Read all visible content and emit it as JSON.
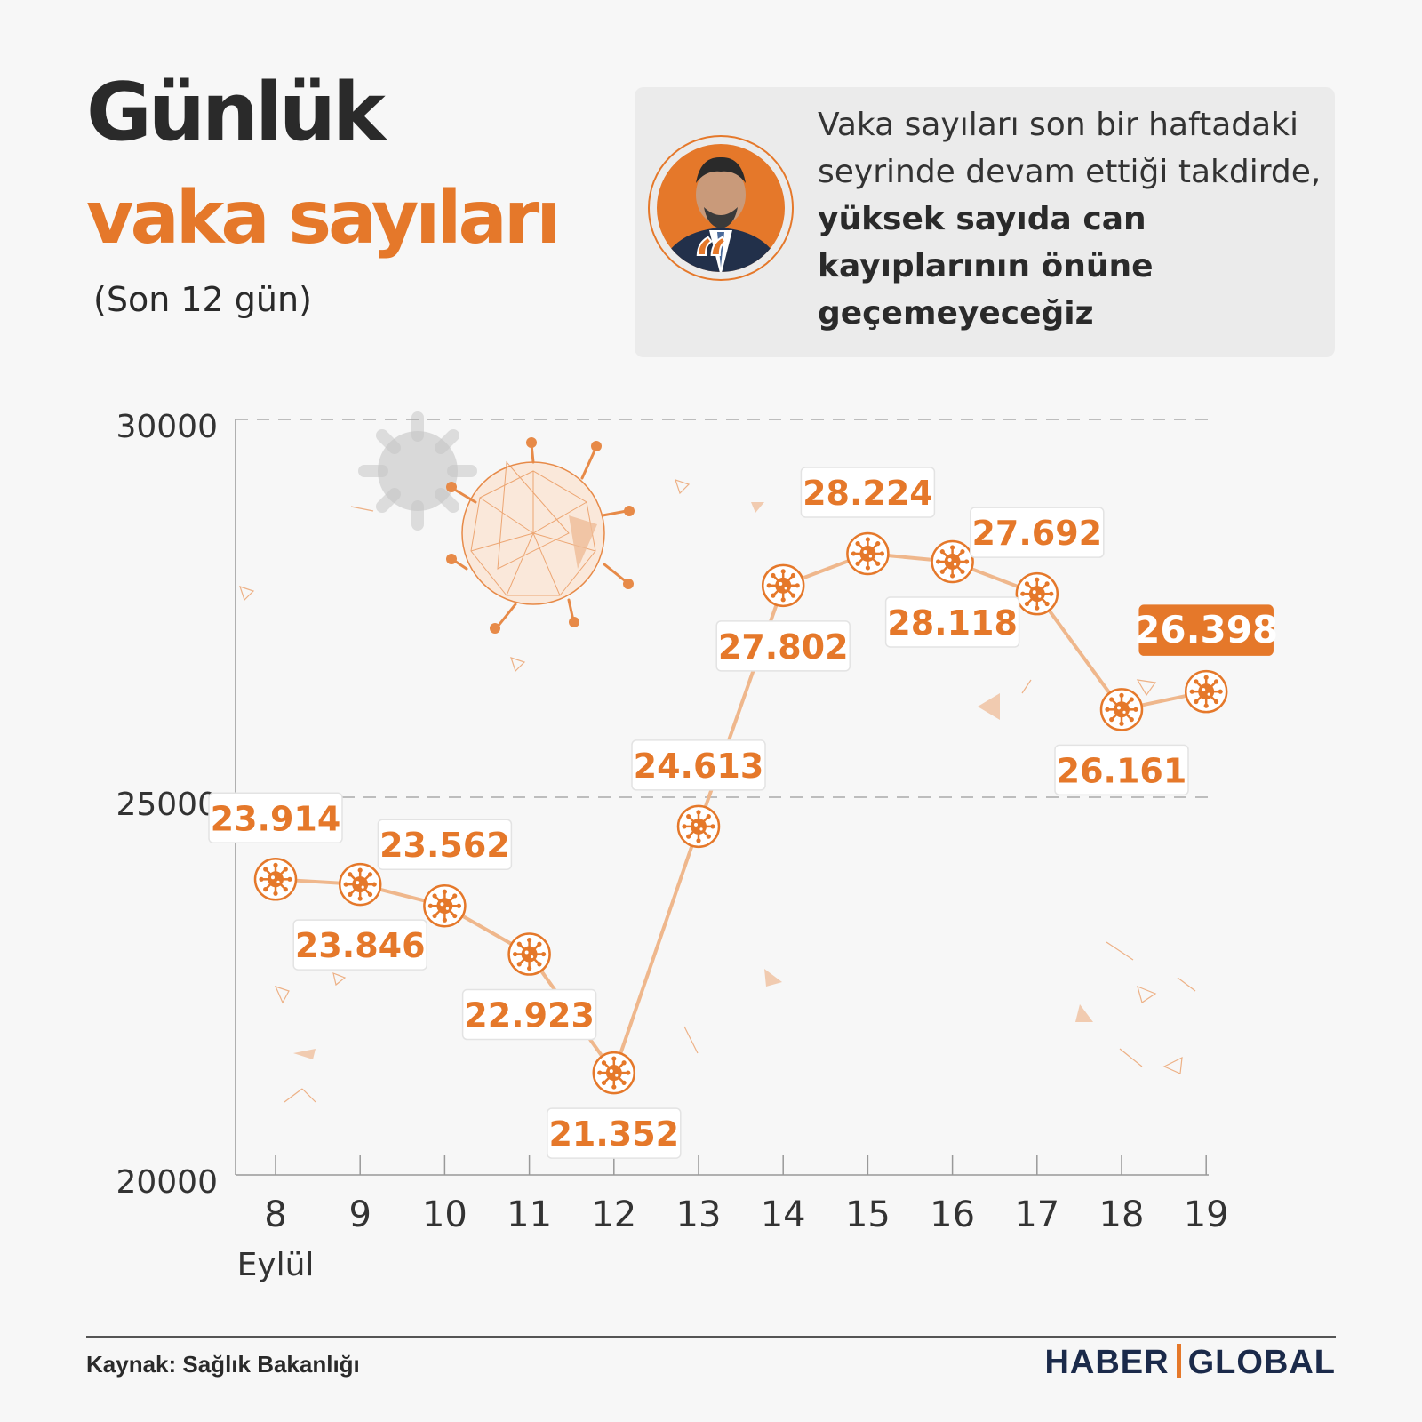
{
  "header": {
    "title_line1": "Günlük",
    "title_line2": "vaka sayıları",
    "subtitle": "(Son 12 gün)"
  },
  "quote": {
    "text_normal": "Vaka sayıları son bir haftadaki seyrinde devam ettiği takdirde, ",
    "text_bold": "yüksek sayıda can kayıplarının önüne geçemeyeceğiz"
  },
  "footer": {
    "source": "Kaynak: Sağlık Bakanlığı",
    "brand_left": "HABER",
    "brand_right": "GLOBAL"
  },
  "colors": {
    "accent": "#e5782a",
    "dark": "#2a2a2a",
    "brand": "#1b2a4a"
  },
  "chart_data": {
    "type": "line",
    "title": "Günlük vaka sayıları",
    "subtitle": "(Son 12 gün)",
    "x": [
      "8",
      "9",
      "10",
      "11",
      "12",
      "13",
      "14",
      "15",
      "16",
      "17",
      "18",
      "19"
    ],
    "x_month_label": "Eylül",
    "values": [
      23914,
      23846,
      23562,
      22923,
      21352,
      24613,
      27802,
      28224,
      28118,
      27692,
      26161,
      26398
    ],
    "value_labels": [
      "23.914",
      "23.846",
      "23.562",
      "22.923",
      "21.352",
      "24.613",
      "27.802",
      "28.224",
      "28.118",
      "27.692",
      "26.161",
      "26.398"
    ],
    "label_position": [
      "above",
      "below",
      "above",
      "below",
      "below",
      "above",
      "below",
      "above",
      "below",
      "above",
      "below",
      "above"
    ],
    "highlight_last": true,
    "y_ticks": [
      "20000",
      "25000",
      "30000"
    ],
    "ylim": [
      20000,
      30000
    ],
    "grid": "dashed at 25000 and 30000"
  }
}
